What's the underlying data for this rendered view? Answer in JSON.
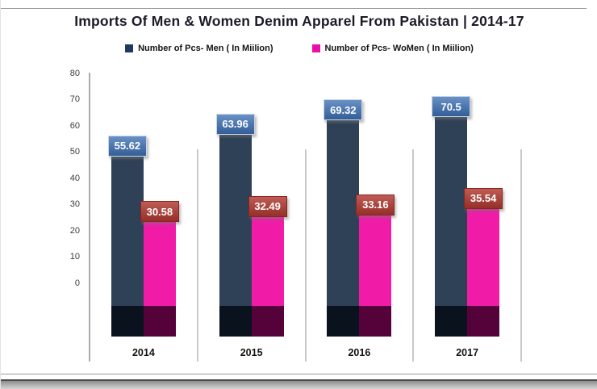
{
  "chart_data": {
    "type": "bar",
    "title": "Imports Of Men & Women Denim Apparel From Pakistan  | 2014-17",
    "categories": [
      "2014",
      "2015",
      "2016",
      "2017"
    ],
    "series": [
      {
        "key": "men",
        "name": "Number of Pcs- Men ( In Miilion)",
        "values": [
          55.62,
          63.96,
          69.32,
          70.5
        ],
        "bar_color": "#2E4156",
        "bar_base_color": "#0A121E",
        "swatch_color": "#1F3864",
        "value_tag_color": "#3E72B8"
      },
      {
        "key": "women",
        "name": "Number of Pcs- WoMen ( In Miilion)",
        "values": [
          30.58,
          32.49,
          33.16,
          35.54
        ],
        "bar_color": "#F01CA8",
        "bar_base_color": "#55023A",
        "swatch_color": "#E90FA8",
        "value_tag_color": "#B03830"
      }
    ],
    "xlabel": "",
    "ylabel": "",
    "ylim": [
      0,
      80
    ],
    "yticks": [
      0,
      10,
      20,
      30,
      40,
      50,
      60,
      70,
      80
    ],
    "grid": "vertical category separators only",
    "legend_position": "top",
    "axis_line_color": "#ababab",
    "separator_color": "#c9c9c9",
    "value_label_text_color": "#ffffff"
  }
}
